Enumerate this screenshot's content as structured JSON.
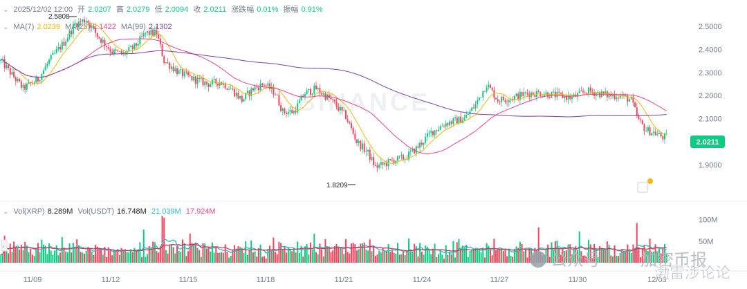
{
  "chart_data": {
    "type": "candlestick",
    "symbol_volume_label": "Vol(XRP)",
    "ohlc_header": {
      "time": "2025/12/02 12:00",
      "open_label": "开",
      "open": "2.0207",
      "high_label": "高",
      "high": "2.0279",
      "low_label": "低",
      "low": "2.0094",
      "close_label": "收",
      "close": "2.0211",
      "change_label": "涨跌幅",
      "change": "0.01%",
      "amplitude_label": "振幅",
      "amplitude": "0.91%"
    },
    "ma_legend": [
      {
        "name": "MA(7)",
        "value": "2.0239",
        "color": "#f0b90b"
      },
      {
        "name": "MA(25)",
        "value": "2.1422",
        "color": "#e84393"
      },
      {
        "name": "MA(99)",
        "value": "2.1302",
        "color": "#7b3fa0"
      }
    ],
    "vol_legend": [
      {
        "name": "Vol(XRP)",
        "value": "8.289M",
        "color": "#1e2329"
      },
      {
        "name": "Vol(USDT)",
        "value": "16.748M",
        "color": "#1e2329"
      },
      {
        "value": "21.039M",
        "color": "#2eb8c8"
      },
      {
        "value": "17.924M",
        "color": "#e84393"
      }
    ],
    "price_axis": {
      "ticks": [
        "2.5000",
        "2.4000",
        "2.3000",
        "2.2000",
        "2.1000",
        "1.9000"
      ],
      "ylim": [
        1.79,
        2.56
      ]
    },
    "volume_axis": {
      "ticks": [
        "100M",
        "50M"
      ],
      "ylim": [
        0,
        120
      ]
    },
    "x_ticks": [
      "11/09",
      "11/12",
      "11/15",
      "11/18",
      "11/21",
      "11/24",
      "11/27",
      "11/30",
      "12/03"
    ],
    "current_price": "2.0211",
    "annotations": {
      "high": "2.5808",
      "low": "1.8209"
    },
    "watermark": "BINANCE",
    "anchors": [
      [
        0,
        2.35
      ],
      [
        6,
        2.29
      ],
      [
        12,
        2.23
      ],
      [
        20,
        2.27
      ],
      [
        26,
        2.35
      ],
      [
        34,
        2.43
      ],
      [
        40,
        2.51
      ],
      [
        46,
        2.53
      ],
      [
        52,
        2.46
      ],
      [
        60,
        2.39
      ],
      [
        66,
        2.38
      ],
      [
        72,
        2.41
      ],
      [
        78,
        2.47
      ],
      [
        84,
        2.47
      ],
      [
        88,
        2.35
      ],
      [
        96,
        2.3
      ],
      [
        104,
        2.27
      ],
      [
        112,
        2.25
      ],
      [
        118,
        2.26
      ],
      [
        124,
        2.23
      ],
      [
        130,
        2.18
      ],
      [
        136,
        2.23
      ],
      [
        142,
        2.25
      ],
      [
        148,
        2.21
      ],
      [
        152,
        2.13
      ],
      [
        158,
        2.13
      ],
      [
        164,
        2.21
      ],
      [
        170,
        2.23
      ],
      [
        178,
        2.18
      ],
      [
        186,
        2.11
      ],
      [
        192,
        2.0
      ],
      [
        198,
        1.95
      ],
      [
        202,
        1.89
      ],
      [
        206,
        1.9
      ],
      [
        212,
        1.92
      ],
      [
        218,
        1.93
      ],
      [
        224,
        1.97
      ],
      [
        232,
        2.04
      ],
      [
        240,
        2.08
      ],
      [
        250,
        2.1
      ],
      [
        256,
        2.16
      ],
      [
        262,
        2.25
      ],
      [
        268,
        2.18
      ],
      [
        276,
        2.19
      ],
      [
        284,
        2.21
      ],
      [
        292,
        2.21
      ],
      [
        300,
        2.2
      ],
      [
        308,
        2.19
      ],
      [
        316,
        2.22
      ],
      [
        322,
        2.21
      ],
      [
        328,
        2.2
      ],
      [
        334,
        2.2
      ],
      [
        340,
        2.18
      ],
      [
        344,
        2.09
      ],
      [
        348,
        2.05
      ],
      [
        352,
        2.04
      ],
      [
        357,
        2.02
      ],
      [
        360,
        2.021
      ]
    ],
    "candle_count": 360
  },
  "watermark_text": {
    "left": "公众号",
    "right": "加密币报",
    "bottom": "渤雷涉论论"
  },
  "colors": {
    "up": "#0ecb81",
    "down": "#f6465d",
    "ma7": "#f0b90b",
    "ma25": "#e84393",
    "ma99": "#7b3fa0"
  }
}
